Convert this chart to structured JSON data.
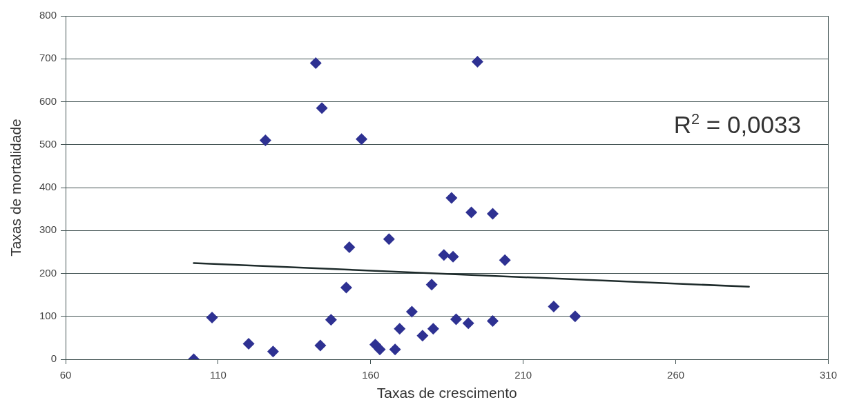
{
  "chart_data": {
    "type": "scatter",
    "xlabel": "Taxas de crescimento",
    "ylabel": "Taxas de mortalidade",
    "annotations": [
      "R$^{2}$ = 0,0033"
    ],
    "xlim": [
      60,
      310
    ],
    "xticks": [
      60,
      110,
      160,
      210,
      260,
      310
    ],
    "ylim": [
      0,
      800
    ],
    "yticks": [
      0,
      100,
      200,
      300,
      400,
      500,
      600,
      700,
      800
    ],
    "grid": "y",
    "marker": "diamond",
    "series": [
      {
        "type": "scatter",
        "color": "#2e3192",
        "x": [
          102,
          108,
          120,
          128,
          125.5,
          142,
          144,
          143.5,
          147,
          152,
          153,
          157,
          161.5,
          163,
          168,
          169.5,
          166,
          173.5,
          177,
          180.5,
          180,
          184,
          187,
          186.5,
          188,
          192,
          195,
          193,
          200,
          200,
          204,
          220,
          227
        ],
        "values": [
          0,
          97,
          36,
          18,
          510,
          690,
          585,
          32,
          92,
          167,
          261,
          513,
          34,
          23,
          23,
          71,
          280,
          111,
          55,
          71,
          174,
          243,
          239,
          376,
          93,
          84,
          693,
          342,
          339,
          89,
          231,
          123,
          100
        ]
      },
      {
        "type": "line",
        "color": "#1e2b2b",
        "marker": "none",
        "x": [
          102,
          284
        ],
        "values": [
          224,
          169
        ]
      }
    ]
  }
}
